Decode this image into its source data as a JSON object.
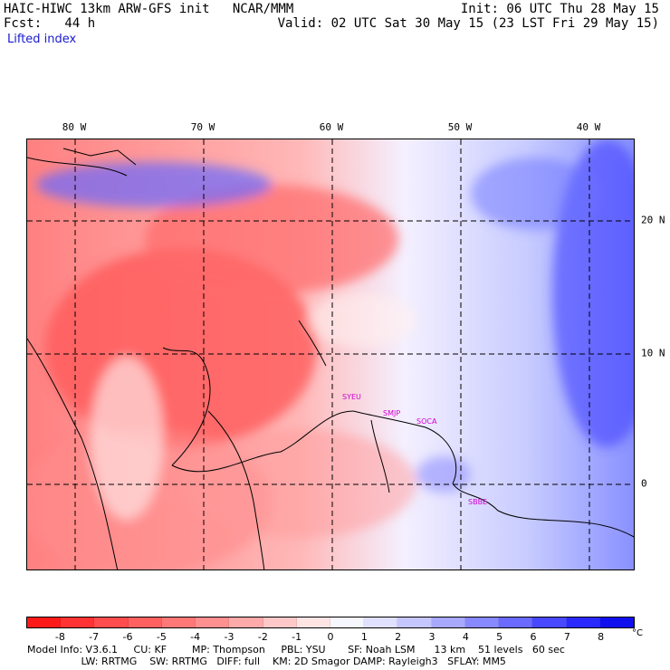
{
  "header": {
    "left_line1": "HAIC-HIWC 13km ARW-GFS init   NCAR/MMM",
    "left_line2": "Fcst:   44 h",
    "right_line1": "Init: 06 UTC Thu 28 May 15",
    "right_line2": "Valid: 02 UTC Sat 30 May 15 (23 LST Fri 29 May 15)",
    "field": "Lifted index"
  },
  "map": {
    "longitude_labels": [
      "80 W",
      "70 W",
      "60 W",
      "50 W",
      "40 W"
    ],
    "latitude_labels": [
      "20 N",
      "10 N",
      "0"
    ],
    "stations": [
      "SYEU",
      "SMJP",
      "SOCA",
      "SBBE"
    ]
  },
  "colorbar": {
    "tick_labels": [
      "-8",
      "-7",
      "-6",
      "-5",
      "-4",
      "-3",
      "-2",
      "-1",
      "0",
      "1",
      "2",
      "3",
      "4",
      "5",
      "6",
      "7",
      "8"
    ],
    "unit": "°C",
    "colors": [
      "#ff1a1a",
      "#ff3333",
      "#ff4d4d",
      "#ff6060",
      "#ff7878",
      "#ff9090",
      "#ffaaaa",
      "#ffc8c8",
      "#ffe4e4",
      "#f6f6ff",
      "#e0e0ff",
      "#c6c6ff",
      "#a8a8ff",
      "#8888ff",
      "#6a6aff",
      "#4848ff",
      "#2a2aff",
      "#1010ee"
    ]
  },
  "info": {
    "line1": "Model Info: V3.6.1     CU: KF        MP: Thompson     PBL: YSU       SF: Noah LSM      13 km    51 levels   60 sec",
    "line2": "                 LW: RRTMG    SW: RRTMG   DIFF: full    KM: 2D Smagor DAMP: Rayleigh3   SFLAY: MM5"
  }
}
